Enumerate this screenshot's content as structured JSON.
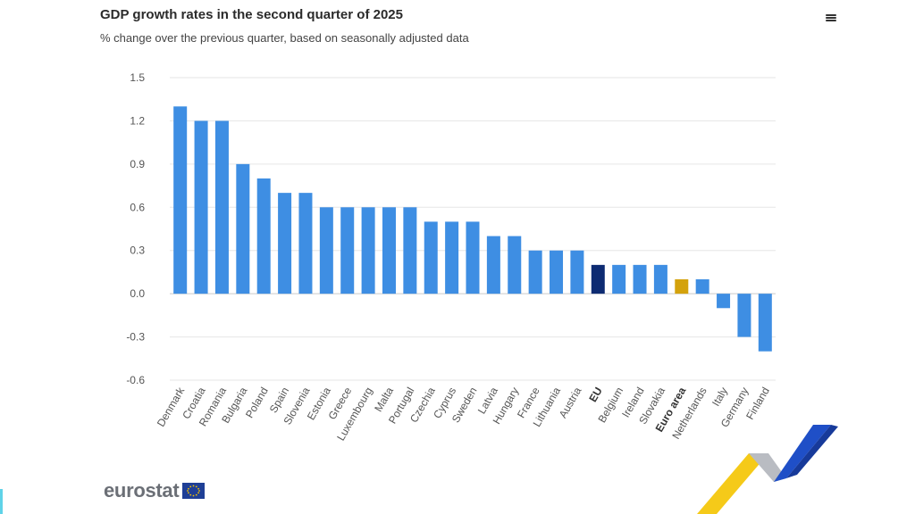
{
  "header": {
    "title": "GDP growth rates in the second quarter of 2025",
    "subtitle": "% change over the previous quarter, based on seasonally adjusted data"
  },
  "icons": {
    "menu": "hamburger-menu-icon"
  },
  "logo": {
    "text": "eurostat",
    "flag": "eu-flag-icon"
  },
  "colors": {
    "bar": "#3e8ee3",
    "eu": "#0d2b72",
    "euro_area": "#d4a20c",
    "grid": "#e6e6e6",
    "axis_text": "#555555"
  },
  "chart_data": {
    "type": "bar",
    "title": "GDP growth rates in the second quarter of 2025",
    "subtitle": "% change over the previous quarter, based on seasonally adjusted data",
    "xlabel": "",
    "ylabel": "",
    "ylim": [
      -0.6,
      1.5
    ],
    "yticks": [
      "1.5",
      "1.2",
      "0.9",
      "0.6",
      "0.3",
      "0.0",
      "-0.3",
      "-0.6"
    ],
    "grid": true,
    "legend": "none",
    "categories": [
      "Denmark",
      "Croatia",
      "Romania",
      "Bulgaria",
      "Poland",
      "Spain",
      "Slovenia",
      "Estonia",
      "Greece",
      "Luxembourg",
      "Malta",
      "Portugal",
      "Czechia",
      "Cyprus",
      "Sweden",
      "Latvia",
      "Hungary",
      "France",
      "Lithuania",
      "Austria",
      "EU",
      "Belgium",
      "Ireland",
      "Slovakia",
      "Euro area",
      "Netherlands",
      "Italy",
      "Germany",
      "Finland"
    ],
    "values": [
      1.3,
      1.2,
      1.2,
      0.9,
      0.8,
      0.7,
      0.7,
      0.6,
      0.6,
      0.6,
      0.6,
      0.6,
      0.5,
      0.5,
      0.5,
      0.4,
      0.4,
      0.3,
      0.3,
      0.3,
      0.2,
      0.2,
      0.2,
      0.2,
      0.1,
      0.1,
      -0.1,
      -0.3,
      -0.4
    ],
    "highlight": {
      "EU": "#0d2b72",
      "Euro area": "#d4a20c"
    },
    "bold_labels": [
      "EU",
      "Euro area"
    ]
  }
}
